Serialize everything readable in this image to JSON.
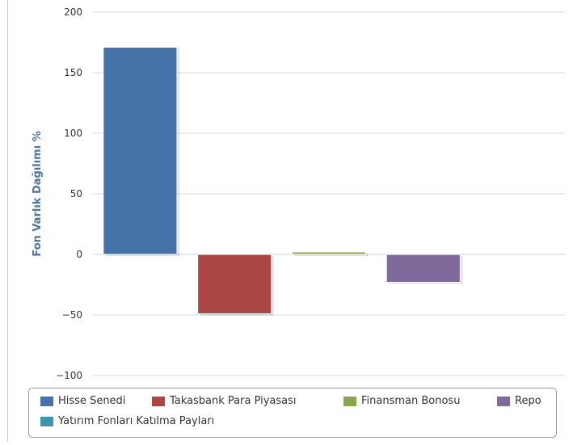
{
  "chart_data": {
    "type": "bar",
    "ylabel": "Fon Varlık Dağılımı %",
    "ylim": [
      -100,
      200
    ],
    "yticks": [
      200,
      150,
      100,
      50,
      0,
      -50,
      -100
    ],
    "grid": true,
    "legend_position": "bottom",
    "series": [
      {
        "name": "Hisse Senedi",
        "value": 171,
        "color": "#4572a7"
      },
      {
        "name": "Takasbank Para Piyasası",
        "value": -49,
        "color": "#aa4643"
      },
      {
        "name": "Finansman Bonosu",
        "value": 2,
        "color": "#89a54e"
      },
      {
        "name": "Repo",
        "value": -23,
        "color": "#80699b"
      },
      {
        "name": "Yatırım Fonları Katılma Payları",
        "value": 0,
        "color": "#3d96ae"
      }
    ]
  },
  "colors": {
    "axis_title": "#4d759e",
    "tick_label": "#333333",
    "grid": "#d8d8d8",
    "zero_line": "#c0d0e0"
  }
}
